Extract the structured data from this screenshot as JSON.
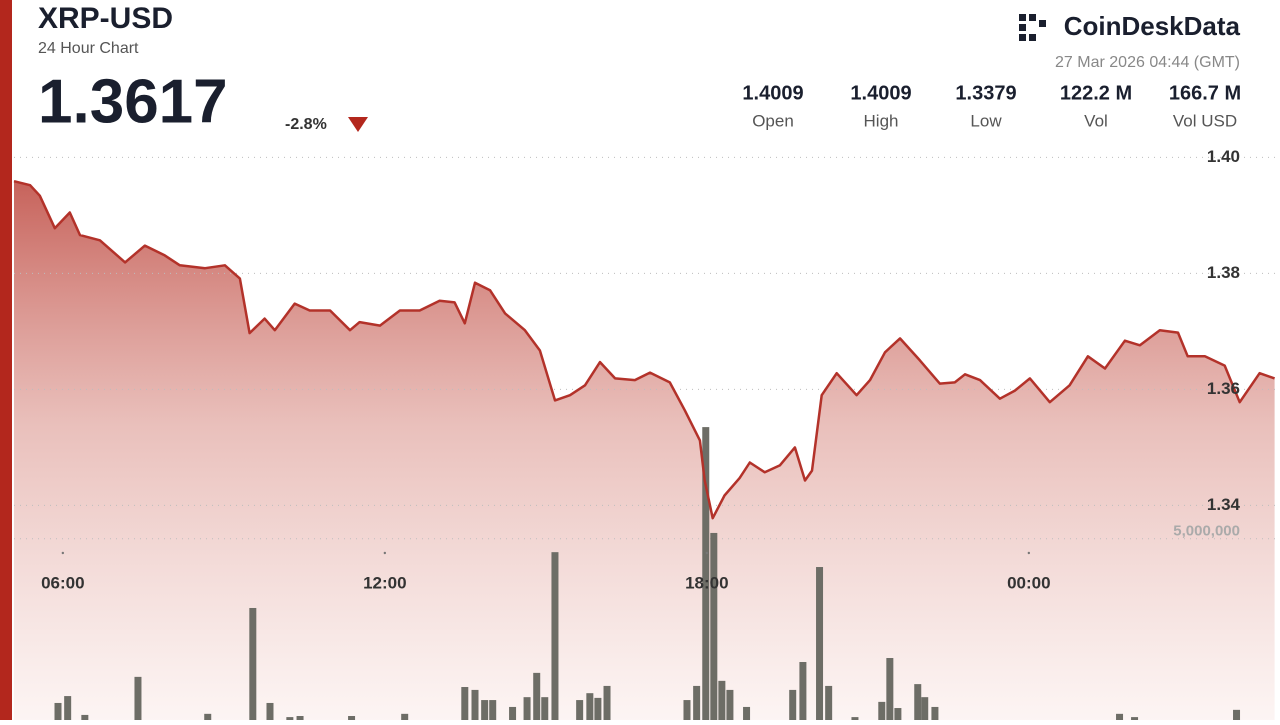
{
  "chart_data": {
    "type": "line",
    "title": "XRP-USD",
    "subtitle": "24 Hour Chart",
    "price": "1.3617",
    "change": "-2.8%",
    "brand": "CoinDeskData",
    "timestamp": "27 Mar 2026 04:44 (GMT)",
    "stats": [
      {
        "value": "1.4009",
        "label": "Open"
      },
      {
        "value": "1.4009",
        "label": "High"
      },
      {
        "value": "1.3379",
        "label": "Low"
      },
      {
        "value": "122.2 M",
        "label": "Vol"
      },
      {
        "value": "166.7 M",
        "label": "Vol USD"
      }
    ],
    "x": [
      5.09,
      5.39,
      5.57,
      5.85,
      6.13,
      6.32,
      6.69,
      7.16,
      7.53,
      7.9,
      8.18,
      8.65,
      9.02,
      9.3,
      9.48,
      9.76,
      9.95,
      10.32,
      10.6,
      10.98,
      11.35,
      11.53,
      11.91,
      12.28,
      12.65,
      13.02,
      13.3,
      13.49,
      13.68,
      13.96,
      14.24,
      14.61,
      14.89,
      15.17,
      15.45,
      15.73,
      16.01,
      16.29,
      16.66,
      16.94,
      17.31,
      17.59,
      17.87,
      17.96,
      18.11,
      18.33,
      18.61,
      18.8,
      19.08,
      19.36,
      19.64,
      19.83,
      19.96,
      20.14,
      20.42,
      20.79,
      21.04,
      21.32,
      21.6,
      21.97,
      22.34,
      22.62,
      22.81,
      23.09,
      23.46,
      23.74,
      24.02,
      24.39,
      24.76,
      25.1,
      25.42,
      25.79,
      26.07,
      26.44,
      26.78,
      26.96,
      27.28,
      27.65,
      27.93,
      28.3,
      28.58
    ],
    "series": [
      {
        "name": "Price",
        "color": "#b3322a",
        "values": [
          1.3959,
          1.3952,
          1.3934,
          1.3878,
          1.3905,
          1.3866,
          1.3857,
          1.3819,
          1.3848,
          1.3831,
          1.3814,
          1.3809,
          1.3814,
          1.3791,
          1.3697,
          1.3722,
          1.3702,
          1.3748,
          1.3736,
          1.3736,
          1.3702,
          1.3716,
          1.371,
          1.3736,
          1.3736,
          1.3753,
          1.375,
          1.3714,
          1.3784,
          1.3771,
          1.3731,
          1.3702,
          1.3667,
          1.3581,
          1.359,
          1.3607,
          1.3647,
          1.3619,
          1.3616,
          1.3629,
          1.3612,
          1.3564,
          1.3512,
          1.3443,
          1.3378,
          1.3417,
          1.3447,
          1.3474,
          1.3457,
          1.3469,
          1.35,
          1.3443,
          1.346,
          1.359,
          1.3628,
          1.359,
          1.3616,
          1.3664,
          1.3688,
          1.365,
          1.361,
          1.3612,
          1.3626,
          1.3616,
          1.3584,
          1.3598,
          1.3619,
          1.3578,
          1.3607,
          1.3657,
          1.3636,
          1.3684,
          1.3676,
          1.3702,
          1.3698,
          1.3657,
          1.3657,
          1.3641,
          1.3578,
          1.3628,
          1.3619
        ]
      }
    ],
    "volume": {
      "color": "#6d6d66",
      "x": [
        5.91,
        6.09,
        6.41,
        7.4,
        8.7,
        9.54,
        9.86,
        10.23,
        10.42,
        11.38,
        12.37,
        13.49,
        13.68,
        13.86,
        14.01,
        14.38,
        14.65,
        14.83,
        14.98,
        15.17,
        15.63,
        15.82,
        15.97,
        16.14,
        17.63,
        17.81,
        17.98,
        18.13,
        18.28,
        18.43,
        18.74,
        19.6,
        19.79,
        20.1,
        20.27,
        20.76,
        21.26,
        21.41,
        21.56,
        21.93,
        22.06,
        22.25,
        25.69,
        25.97,
        27.87
      ],
      "values": [
        470000,
        660000,
        140000,
        1190000,
        170000,
        3090000,
        470000,
        80000,
        110000,
        110000,
        170000,
        910000,
        830000,
        550000,
        550000,
        360000,
        630000,
        1300000,
        630000,
        4630000,
        550000,
        740000,
        610000,
        940000,
        550000,
        940000,
        8080000,
        5160000,
        1080000,
        830000,
        360000,
        830000,
        1600000,
        4220000,
        940000,
        80000,
        500000,
        1710000,
        330000,
        990000,
        630000,
        360000,
        170000,
        80000,
        280000
      ]
    },
    "xlim": [
      5.09,
      28.68
    ],
    "xticks": [
      {
        "value": 6,
        "label": "06:00"
      },
      {
        "value": 12,
        "label": "12:00"
      },
      {
        "value": 18,
        "label": "18:00"
      },
      {
        "value": 24,
        "label": "00:00"
      }
    ],
    "ylim": [
      1.303,
      1.403
    ],
    "yticks": [
      1.34,
      1.36,
      1.38,
      {
        "value": 1.4,
        "label": "1.40"
      }
    ],
    "y2lim": [
      0,
      16000000
    ],
    "y2ticks": [
      {
        "value": 5000000,
        "label": "5,000,000"
      }
    ],
    "grid": true
  }
}
